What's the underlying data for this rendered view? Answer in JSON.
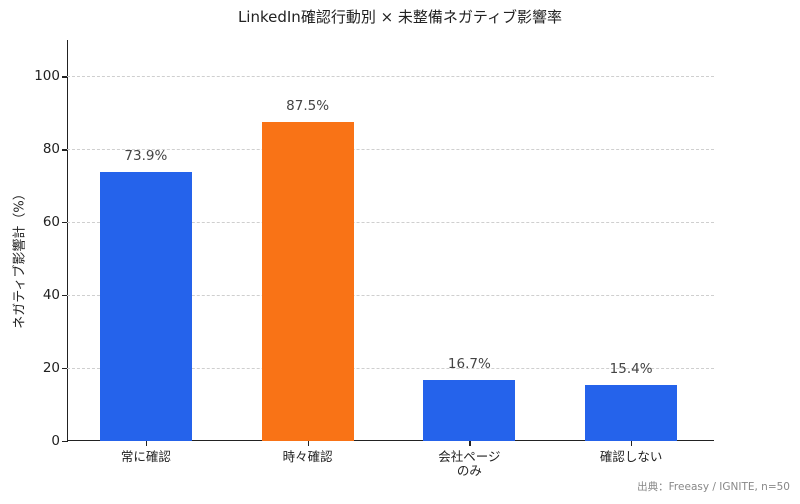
{
  "chart_data": {
    "type": "bar",
    "title": "LinkedIn確認行動別 × 未整備ネガティブ影響率",
    "xlabel": "",
    "ylabel": "ネガティブ影響計（%）",
    "categories": [
      "常に確認",
      "時々確認",
      "会社ページ\nのみ",
      "確認しない"
    ],
    "values": [
      73.9,
      87.5,
      16.7,
      15.4
    ],
    "value_labels": [
      "73.9%",
      "87.5%",
      "16.7%",
      "15.4%"
    ],
    "bar_colors": [
      "#2563eb",
      "#f97316",
      "#2563eb",
      "#2563eb"
    ],
    "ylim": [
      0,
      110
    ],
    "yticks": [
      0,
      20,
      40,
      60,
      80,
      100
    ],
    "grid": "y-dashed",
    "legend": null,
    "annotation": "出典：Freeasy / IGNITE, n=50"
  },
  "labels": {
    "title": "LinkedIn確認行動別 × 未整備ネガティブ影響率",
    "ylabel": "ネガティブ影響計（%）",
    "source": "出典：Freeasy / IGNITE, n=50",
    "yticks": [
      "0",
      "20",
      "40",
      "60",
      "80",
      "100"
    ],
    "bars": [
      {
        "category": "常に確認",
        "value_label": "73.9%"
      },
      {
        "category": "時々確認",
        "value_label": "87.5%"
      },
      {
        "category": "会社ページ\nのみ",
        "value_label": "16.7%"
      },
      {
        "category": "確認しない",
        "value_label": "15.4%"
      }
    ]
  }
}
